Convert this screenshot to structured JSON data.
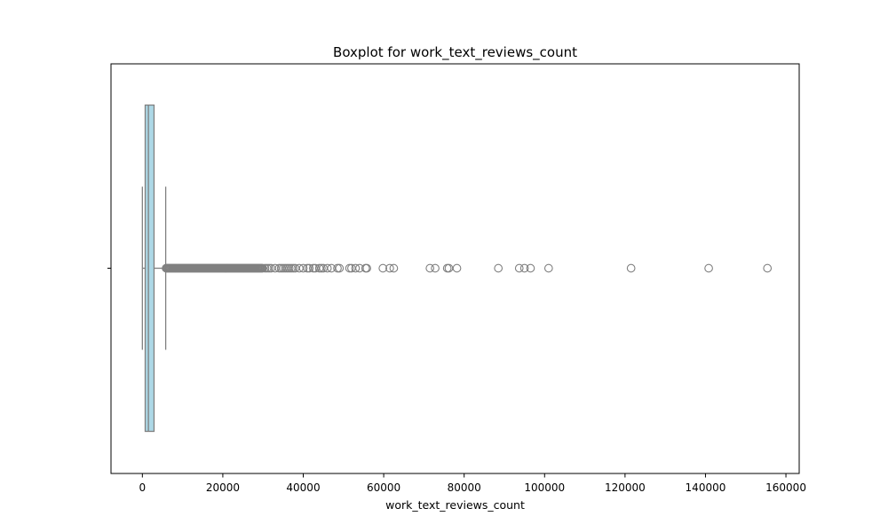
{
  "chart_data": {
    "type": "boxplot",
    "title": "Boxplot for work_text_reviews_count",
    "xlabel": "work_text_reviews_count",
    "ylabel": "",
    "orientation": "horizontal",
    "xlim": [
      -7800,
      163300
    ],
    "x_ticks": [
      0,
      20000,
      40000,
      60000,
      80000,
      100000,
      120000,
      140000,
      160000
    ],
    "x_tick_labels": [
      "0",
      "20000",
      "40000",
      "60000",
      "80000",
      "100000",
      "120000",
      "140000",
      "160000"
    ],
    "grid": false,
    "colors": {
      "box_fill": "#add8e6",
      "box_edge": "#808080",
      "outlier_edge": "#808080"
    },
    "box": {
      "whisker_low": 0,
      "q1": 700,
      "median": 1500,
      "q3": 2900,
      "whisker_high": 5800
    },
    "outliers_dense_range": [
      5900,
      30000
    ],
    "outliers": [
      30500,
      31000,
      31500,
      32000,
      33000,
      34000,
      34500,
      35000,
      35500,
      36000,
      36500,
      37000,
      37500,
      38000,
      39000,
      40000,
      41000,
      41500,
      42500,
      43000,
      44000,
      44500,
      45000,
      46000,
      47000,
      48500,
      49000,
      51500,
      52000,
      53000,
      54000,
      55500,
      55800,
      59800,
      61500,
      62500,
      71500,
      72800,
      75800,
      76200,
      78200,
      88500,
      93700,
      95000,
      96500,
      101000,
      121500,
      140800,
      155400
    ]
  }
}
